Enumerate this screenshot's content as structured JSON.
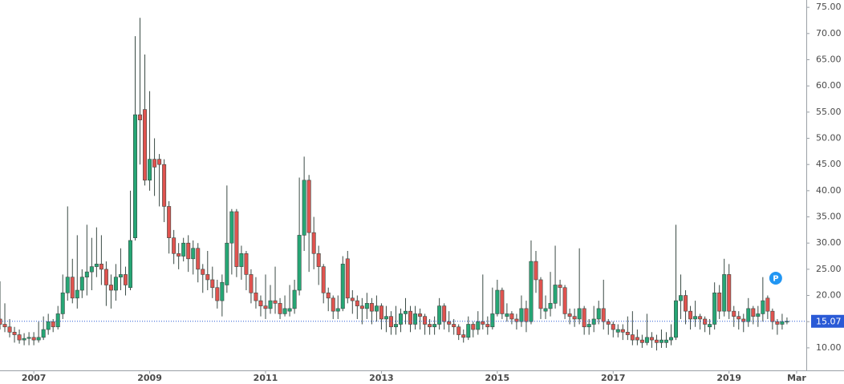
{
  "chart_data": {
    "type": "candlestick",
    "x": [
      "2006-06",
      "2006-07",
      "2006-08",
      "2006-09",
      "2006-10",
      "2006-11",
      "2006-12",
      "2007-01",
      "2007-02",
      "2007-03",
      "2007-04",
      "2007-05",
      "2007-06",
      "2007-07",
      "2007-08",
      "2007-09",
      "2007-10",
      "2007-11",
      "2007-12",
      "2008-01",
      "2008-02",
      "2008-03",
      "2008-04",
      "2008-05",
      "2008-06",
      "2008-07",
      "2008-08",
      "2008-09",
      "2008-10",
      "2008-11",
      "2008-12",
      "2009-01",
      "2009-02",
      "2009-03",
      "2009-04",
      "2009-05",
      "2009-06",
      "2009-07",
      "2009-08",
      "2009-09",
      "2009-10",
      "2009-11",
      "2009-12",
      "2010-01",
      "2010-02",
      "2010-03",
      "2010-04",
      "2010-05",
      "2010-06",
      "2010-07",
      "2010-08",
      "2010-09",
      "2010-10",
      "2010-11",
      "2010-12",
      "2011-01",
      "2011-02",
      "2011-03",
      "2011-04",
      "2011-05",
      "2011-06",
      "2011-07",
      "2011-08",
      "2011-09",
      "2011-10",
      "2011-11",
      "2011-12",
      "2012-01",
      "2012-02",
      "2012-03",
      "2012-04",
      "2012-05",
      "2012-06",
      "2012-07",
      "2012-08",
      "2012-09",
      "2012-10",
      "2012-11",
      "2012-12",
      "2013-01",
      "2013-02",
      "2013-03",
      "2013-04",
      "2013-05",
      "2013-06",
      "2013-07",
      "2013-08",
      "2013-09",
      "2013-10",
      "2013-11",
      "2013-12",
      "2014-01",
      "2014-02",
      "2014-03",
      "2014-04",
      "2014-05",
      "2014-06",
      "2014-07",
      "2014-08",
      "2014-09",
      "2014-10",
      "2014-11",
      "2014-12",
      "2015-01",
      "2015-02",
      "2015-03",
      "2015-04",
      "2015-05",
      "2015-06",
      "2015-07",
      "2015-08",
      "2015-09",
      "2015-10",
      "2015-11",
      "2015-12",
      "2016-01",
      "2016-02",
      "2016-03",
      "2016-04",
      "2016-05",
      "2016-06",
      "2016-07",
      "2016-08",
      "2016-09",
      "2016-10",
      "2016-11",
      "2016-12",
      "2017-01",
      "2017-02",
      "2017-03",
      "2017-04",
      "2017-05",
      "2017-06",
      "2017-07",
      "2017-08",
      "2017-09",
      "2017-10",
      "2017-11",
      "2017-12",
      "2018-01",
      "2018-02",
      "2018-03",
      "2018-04",
      "2018-05",
      "2018-06",
      "2018-07",
      "2018-08",
      "2018-09",
      "2018-10",
      "2018-11",
      "2018-12",
      "2019-01",
      "2019-02",
      "2019-03",
      "2019-04",
      "2019-05",
      "2019-06",
      "2019-07",
      "2019-08",
      "2019-09",
      "2019-10",
      "2019-11",
      "2019-12",
      "2020-01"
    ],
    "open": [
      15.5,
      14.5,
      14.0,
      13.0,
      12.5,
      11.5,
      11.8,
      12.0,
      11.5,
      12.0,
      13.5,
      15.0,
      14.0,
      16.5,
      20.5,
      23.5,
      19.5,
      21.0,
      23.5,
      24.5,
      25.5,
      26.0,
      25.0,
      22.0,
      21.0,
      23.5,
      24.0,
      21.5,
      31.0,
      54.5,
      55.5,
      42.0,
      46.0,
      46.0,
      45.0,
      37.0,
      31.0,
      28.0,
      27.5,
      30.0,
      27.0,
      29.0,
      25.0,
      24.0,
      23.0,
      21.5,
      19.0,
      22.0,
      30.0,
      36.0,
      25.5,
      28.0,
      24.0,
      20.5,
      19.0,
      18.0,
      17.5,
      19.0,
      18.5,
      16.5,
      17.0,
      17.5,
      21.0,
      31.5,
      42.0,
      32.0,
      28.0,
      25.5,
      20.5,
      19.5,
      17.0,
      17.5,
      27.0,
      19.5,
      19.0,
      18.0,
      17.5,
      18.5,
      17.0,
      18.0,
      15.5,
      16.0,
      14.0,
      14.5,
      16.5,
      17.0,
      14.5,
      16.5,
      16.0,
      14.5,
      14.0,
      14.5,
      18.0,
      15.0,
      14.5,
      14.0,
      12.5,
      12.0,
      14.5,
      13.5,
      15.0,
      14.5,
      14.0,
      16.5,
      21.0,
      16.0,
      16.5,
      15.5,
      15.0,
      17.5,
      15.0,
      26.5,
      23.0,
      17.0,
      17.5,
      18.5,
      22.0,
      21.5,
      16.5,
      16.0,
      15.5,
      17.5,
      14.0,
      14.5,
      15.5,
      17.5,
      15.0,
      14.5,
      13.0,
      13.5,
      13.0,
      12.5,
      12.0,
      11.5,
      11.0,
      12.0,
      11.5,
      11.0,
      11.0,
      11.5,
      12.0,
      19.0,
      20.0,
      17.0,
      15.5,
      16.0,
      15.5,
      14.0,
      14.5,
      20.5,
      17.0,
      24.0,
      17.0,
      16.0,
      15.5,
      15.0,
      17.5,
      16.0,
      16.5,
      19.5,
      17.0,
      15.0,
      14.5,
      15.0
    ],
    "high": [
      22.7,
      18.5,
      15.5,
      14.0,
      13.5,
      12.8,
      13.0,
      13.0,
      15.0,
      16.0,
      16.5,
      15.5,
      18.0,
      24.0,
      37.0,
      27.0,
      31.5,
      25.0,
      33.5,
      31.0,
      33.0,
      31.5,
      26.5,
      24.0,
      26.0,
      29.0,
      25.5,
      40.0,
      69.5,
      73.0,
      66.0,
      59.0,
      50.0,
      47.0,
      46.0,
      38.0,
      32.5,
      30.0,
      31.0,
      31.5,
      30.5,
      30.0,
      26.0,
      28.5,
      25.5,
      23.0,
      24.0,
      41.0,
      36.5,
      36.5,
      29.5,
      28.5,
      25.0,
      23.5,
      20.0,
      24.0,
      22.0,
      25.5,
      19.5,
      20.0,
      22.0,
      23.0,
      42.5,
      46.5,
      43.0,
      35.0,
      29.5,
      26.0,
      21.5,
      20.0,
      20.0,
      27.5,
      28.5,
      21.0,
      20.0,
      19.5,
      20.5,
      19.5,
      20.0,
      18.5,
      18.0,
      17.0,
      18.0,
      17.5,
      19.5,
      18.0,
      18.0,
      17.5,
      16.5,
      15.5,
      16.0,
      19.5,
      18.5,
      17.0,
      15.5,
      14.5,
      13.5,
      16.0,
      15.0,
      17.0,
      24.0,
      16.0,
      21.5,
      23.0,
      21.5,
      18.5,
      17.0,
      16.5,
      20.0,
      19.0,
      30.5,
      28.5,
      23.5,
      20.0,
      24.5,
      29.5,
      23.0,
      22.0,
      17.5,
      17.5,
      29.0,
      18.0,
      15.5,
      18.0,
      19.0,
      23.0,
      15.5,
      15.0,
      14.5,
      14.5,
      16.0,
      17.0,
      13.5,
      12.5,
      16.5,
      13.0,
      12.5,
      13.5,
      13.0,
      14.5,
      33.5,
      24.0,
      21.0,
      18.0,
      19.0,
      16.5,
      16.0,
      15.5,
      22.5,
      22.0,
      27.0,
      26.0,
      18.0,
      17.0,
      16.5,
      19.5,
      18.0,
      18.0,
      23.5,
      20.0,
      17.5,
      15.5,
      16.5,
      15.8
    ],
    "low": [
      13.5,
      13.0,
      12.0,
      11.0,
      10.8,
      10.5,
      10.5,
      10.5,
      11.0,
      11.5,
      12.5,
      13.0,
      13.5,
      15.5,
      19.0,
      18.5,
      17.5,
      19.5,
      20.0,
      21.0,
      23.5,
      22.0,
      18.0,
      17.5,
      19.0,
      21.0,
      20.0,
      21.0,
      30.5,
      45.0,
      41.0,
      40.0,
      39.0,
      37.0,
      34.0,
      28.0,
      26.0,
      25.0,
      26.5,
      24.5,
      24.0,
      22.5,
      20.5,
      21.0,
      19.5,
      17.5,
      16.0,
      20.5,
      24.0,
      23.5,
      23.0,
      21.0,
      18.5,
      17.5,
      16.0,
      15.5,
      16.5,
      16.5,
      15.5,
      16.0,
      16.0,
      16.5,
      20.0,
      28.5,
      24.5,
      25.0,
      22.0,
      18.5,
      17.0,
      15.5,
      15.5,
      17.0,
      18.5,
      16.5,
      15.5,
      14.5,
      15.5,
      14.5,
      15.0,
      13.5,
      13.0,
      12.5,
      12.5,
      13.0,
      14.5,
      13.0,
      13.5,
      13.5,
      12.5,
      12.5,
      12.5,
      13.5,
      13.5,
      13.0,
      12.5,
      11.5,
      11.0,
      11.5,
      12.0,
      12.5,
      13.5,
      12.5,
      13.5,
      16.0,
      15.5,
      15.0,
      14.5,
      13.5,
      14.0,
      13.0,
      14.5,
      20.5,
      15.5,
      15.5,
      16.0,
      17.5,
      18.0,
      15.5,
      14.5,
      14.0,
      14.5,
      12.5,
      12.5,
      13.0,
      14.5,
      13.5,
      12.5,
      12.0,
      12.0,
      11.5,
      11.5,
      10.5,
      10.5,
      10.0,
      10.5,
      10.0,
      9.5,
      10.0,
      10.0,
      10.5,
      11.5,
      15.5,
      14.5,
      13.5,
      14.0,
      13.5,
      13.0,
      12.5,
      13.5,
      15.5,
      16.0,
      15.5,
      14.0,
      13.5,
      13.0,
      14.0,
      14.5,
      14.0,
      15.0,
      15.5,
      13.5,
      12.5,
      13.5,
      14.5
    ],
    "close": [
      14.5,
      14.0,
      13.0,
      12.5,
      11.5,
      11.8,
      12.0,
      11.5,
      12.0,
      13.5,
      15.0,
      14.0,
      16.5,
      20.5,
      23.5,
      19.5,
      21.0,
      23.5,
      24.5,
      25.5,
      26.0,
      25.0,
      22.0,
      21.0,
      23.5,
      24.0,
      22.0,
      30.5,
      54.5,
      53.5,
      42.0,
      46.0,
      44.5,
      45.0,
      37.0,
      31.0,
      28.0,
      27.5,
      30.0,
      27.0,
      29.0,
      25.0,
      24.0,
      23.0,
      21.5,
      19.0,
      22.5,
      30.0,
      36.0,
      25.5,
      28.0,
      24.0,
      20.5,
      19.0,
      18.0,
      17.5,
      19.0,
      18.5,
      16.5,
      17.5,
      17.5,
      21.0,
      31.5,
      42.0,
      32.0,
      28.0,
      25.5,
      20.5,
      19.5,
      17.0,
      17.5,
      26.0,
      19.5,
      19.0,
      18.0,
      17.5,
      18.5,
      17.0,
      18.0,
      15.5,
      16.0,
      14.0,
      14.5,
      16.5,
      17.0,
      14.5,
      16.5,
      16.0,
      14.5,
      14.0,
      14.5,
      18.0,
      15.0,
      14.5,
      14.0,
      12.5,
      12.0,
      14.5,
      13.5,
      15.0,
      14.5,
      14.0,
      16.5,
      21.0,
      16.5,
      16.5,
      15.5,
      15.0,
      17.5,
      15.0,
      26.5,
      23.0,
      17.5,
      17.5,
      18.5,
      22.0,
      21.5,
      16.5,
      16.0,
      15.5,
      17.5,
      14.0,
      14.5,
      15.5,
      17.5,
      15.0,
      14.5,
      13.5,
      13.5,
      13.0,
      12.5,
      11.5,
      11.5,
      11.0,
      12.0,
      11.5,
      11.0,
      11.5,
      11.5,
      12.0,
      19.0,
      20.0,
      17.0,
      15.5,
      16.0,
      15.5,
      14.5,
      14.5,
      20.5,
      17.0,
      24.0,
      17.0,
      16.0,
      15.5,
      15.0,
      17.5,
      16.0,
      16.5,
      19.0,
      17.0,
      15.0,
      14.5,
      15.0,
      15.07
    ],
    "up_color": "#26a675",
    "down_color": "#e0534f",
    "wick_color": "#3a4a44",
    "xlim": [
      "2006-06",
      "2020-05"
    ],
    "xticks": [
      {
        "value": "2007-01",
        "label": "2007"
      },
      {
        "value": "2009-01",
        "label": "2009"
      },
      {
        "value": "2011-01",
        "label": "2011"
      },
      {
        "value": "2013-01",
        "label": "2013"
      },
      {
        "value": "2015-01",
        "label": "2015"
      },
      {
        "value": "2017-01",
        "label": "2017"
      },
      {
        "value": "2019-01",
        "label": "2019"
      },
      {
        "value": "2020-03",
        "label": "Mar"
      }
    ],
    "ylim": [
      5.7,
      76.4
    ],
    "yticks": [
      {
        "value": 10,
        "label": "10.00"
      },
      {
        "value": 15,
        "label": "15.00"
      },
      {
        "value": 20,
        "label": "20.00"
      },
      {
        "value": 25,
        "label": "25.00"
      },
      {
        "value": 30,
        "label": "30.00"
      },
      {
        "value": 35,
        "label": "35.00"
      },
      {
        "value": 40,
        "label": "40.00"
      },
      {
        "value": 45,
        "label": "45.00"
      },
      {
        "value": 50,
        "label": "50.00"
      },
      {
        "value": 55,
        "label": "55.00"
      },
      {
        "value": 60,
        "label": "60.00"
      },
      {
        "value": 65,
        "label": "65.00"
      },
      {
        "value": 70,
        "label": "70.00"
      },
      {
        "value": 75,
        "label": "75.00"
      }
    ],
    "last_price": 15.07,
    "price_line_color": "#2a5ad6",
    "marker_label": "P",
    "marker_color": "#2196f3"
  }
}
